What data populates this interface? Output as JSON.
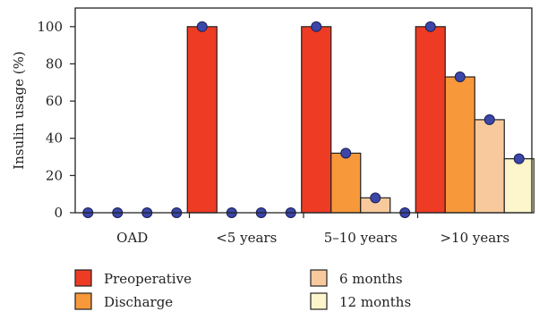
{
  "chart_data": {
    "type": "bar",
    "title": "",
    "xlabel": "",
    "ylabel": "Insulin usage (%)",
    "ylim": [
      0,
      110
    ],
    "yticks": [
      0,
      20,
      40,
      60,
      80,
      100
    ],
    "grid": false,
    "legend_position": "bottom",
    "categories": [
      "OAD",
      "<5 years",
      "5–10 years",
      ">10 years"
    ],
    "series": [
      {
        "name": "Preoperative",
        "color": "#ee3b24",
        "values": [
          0,
          100,
          100,
          100
        ]
      },
      {
        "name": "Discharge",
        "color": "#f7983a",
        "values": [
          0,
          0,
          32,
          73
        ]
      },
      {
        "name": "6 months",
        "color": "#f8c99c",
        "values": [
          0,
          0,
          8,
          50
        ]
      },
      {
        "name": "12 months",
        "color": "#fdf6cc",
        "values": [
          0,
          0,
          0,
          29
        ]
      }
    ],
    "marker_color": "#3b46a8"
  }
}
